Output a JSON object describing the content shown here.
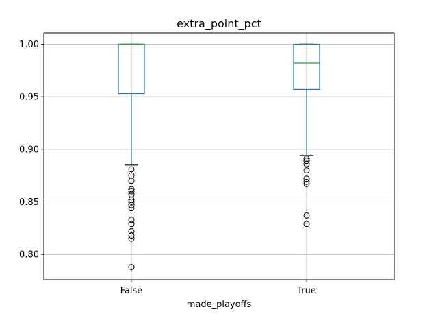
{
  "chart_data": {
    "type": "box",
    "title": "extra_point_pct",
    "xlabel": "made_playoffs",
    "ylabel": "",
    "categories": [
      "False",
      "True"
    ],
    "ylim": [
      0.776,
      1.0107
    ],
    "yticks": [
      0.8,
      0.85,
      0.9,
      0.95,
      1.0
    ],
    "ytick_labels": [
      "0.80",
      "0.85",
      "0.90",
      "0.95",
      "1.00"
    ],
    "grid": true,
    "boxes": [
      {
        "category": "False",
        "whisker_low": 0.885,
        "q1": 0.953,
        "median": 1.0,
        "q3": 1.0,
        "whisker_high": 1.0,
        "fliers": [
          0.881,
          0.875,
          0.87,
          0.862,
          0.86,
          0.857,
          0.857,
          0.852,
          0.85,
          0.847,
          0.844,
          0.833,
          0.829,
          0.822,
          0.818,
          0.815,
          0.788
        ]
      },
      {
        "category": "True",
        "whisker_low": 0.894,
        "q1": 0.957,
        "median": 0.982,
        "q3": 1.0,
        "whisker_high": 1.0,
        "fliers": [
          0.891,
          0.889,
          0.886,
          0.88,
          0.872,
          0.869,
          0.867,
          0.837,
          0.829
        ]
      }
    ],
    "colors": {
      "box": "#1f77b4",
      "median": "#2ca02c",
      "whisker": "#1f77b4",
      "cap": "#000000",
      "flier": "#000000",
      "grid": "#b0b0b0"
    }
  }
}
